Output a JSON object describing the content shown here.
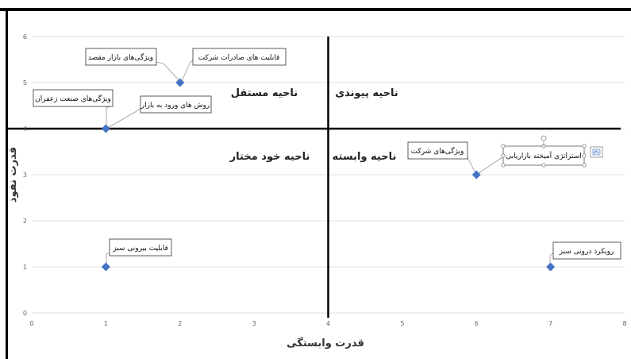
{
  "chart_data": {
    "type": "scatter",
    "xlabel": "قدرت وابستگی",
    "ylabel": "قدرت نفوذ",
    "xlim": [
      0,
      8
    ],
    "ylim": [
      0,
      6
    ],
    "x_ticks": [
      "0",
      "1",
      "2",
      "3",
      "4",
      "5",
      "6",
      "7",
      "8"
    ],
    "y_ticks": [
      "0",
      "1",
      "2",
      "3",
      "4",
      "5",
      "6"
    ],
    "grid": "horizontal",
    "divider": {
      "x": 4,
      "y": 4
    },
    "marker_color": "#4472C4",
    "quadrants": {
      "top_left": "ناحیه مستقل",
      "top_right": "ناحیه پیوندی",
      "bottom_left": "ناحیه خود مختار",
      "bottom_right": "ناحیه وابسته"
    },
    "points": [
      {
        "x": 2,
        "y": 5,
        "labels": [
          "ویژگی‌های بازار مقصد",
          "قابلیت های صادرات شرکت"
        ]
      },
      {
        "x": 1,
        "y": 4,
        "labels": [
          "ویژگی‌های صنعت زعفران",
          "روش های ورود به بازار"
        ]
      },
      {
        "x": 1,
        "y": 1,
        "labels": [
          "قابلیت بیرونی سبز"
        ]
      },
      {
        "x": 6,
        "y": 3,
        "labels": [
          "ویژگی‌های شرکت",
          "استراتژی آمیخته بازاریابی"
        ]
      },
      {
        "x": 7,
        "y": 1,
        "labels": [
          "رویکرد درونی سبز"
        ]
      }
    ]
  }
}
